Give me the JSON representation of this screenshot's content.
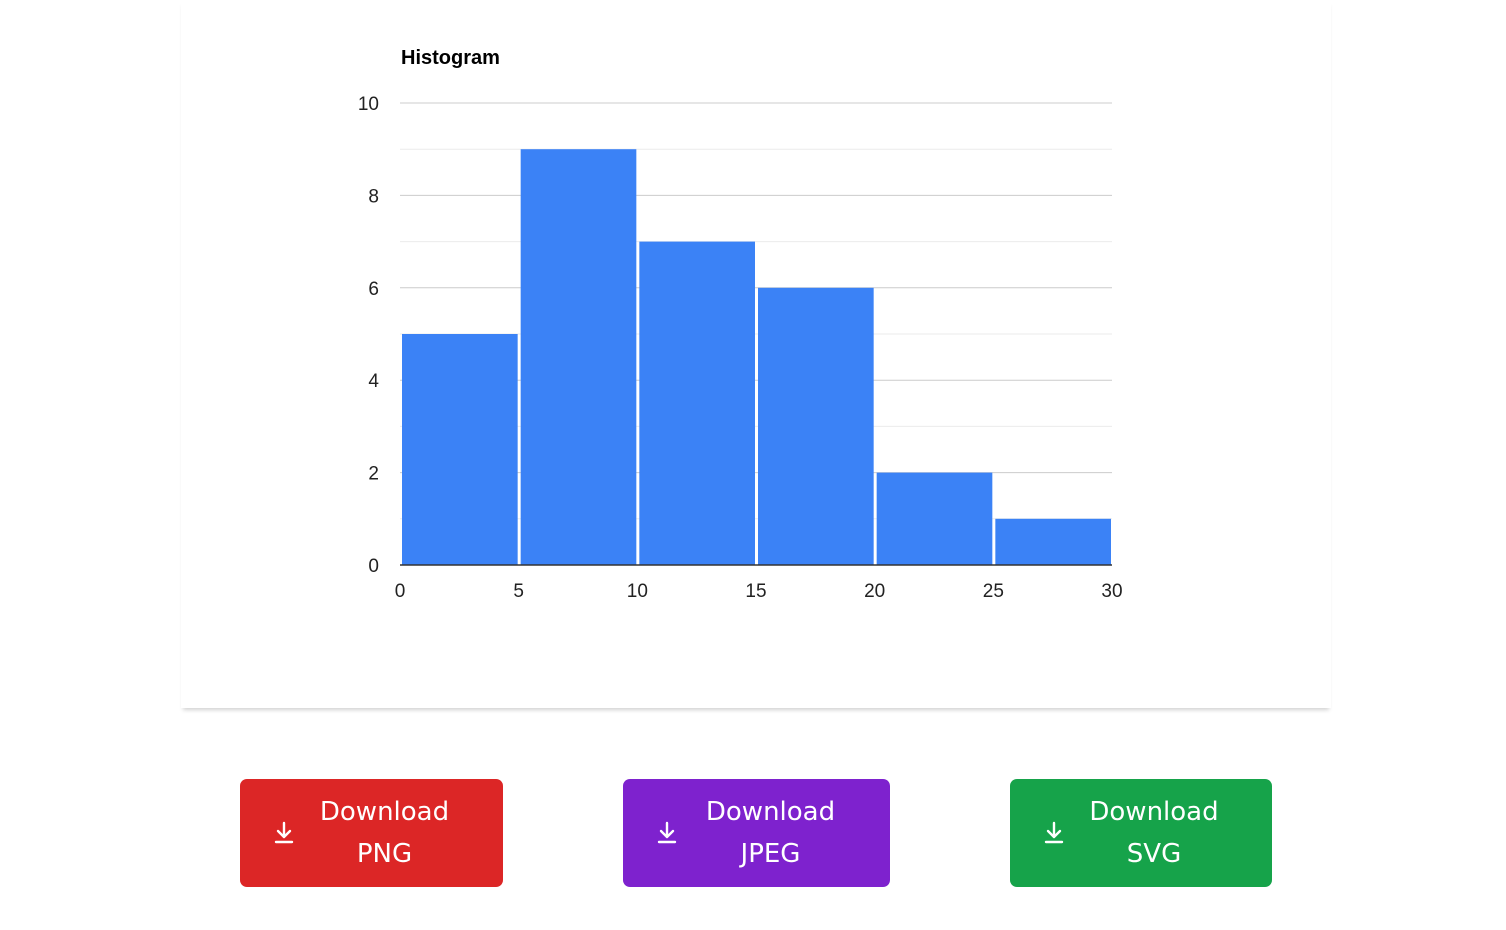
{
  "chart_data": {
    "type": "bar",
    "title": "Histogram",
    "xlabel": "",
    "ylabel": "",
    "bin_edges": [
      0,
      5,
      10,
      15,
      20,
      25,
      30
    ],
    "values": [
      5,
      9,
      7,
      6,
      2,
      1
    ],
    "x_ticks": [
      "0",
      "5",
      "10",
      "15",
      "20",
      "25",
      "30"
    ],
    "y_ticks": [
      "0",
      "2",
      "4",
      "6",
      "8",
      "10"
    ],
    "xlim": [
      0,
      30
    ],
    "ylim": [
      0,
      10
    ],
    "grid": true,
    "bar_color": "#3b82f6"
  },
  "buttons": [
    {
      "id": "png",
      "line1": "Download",
      "line2": "PNG",
      "color": "#dc2626",
      "icon": "download-icon"
    },
    {
      "id": "jpeg",
      "line1": "Download",
      "line2": "JPEG",
      "color": "#7e22ce",
      "icon": "download-icon"
    },
    {
      "id": "svg",
      "line1": "Download",
      "line2": "SVG",
      "color": "#16a34a",
      "icon": "download-icon"
    }
  ]
}
